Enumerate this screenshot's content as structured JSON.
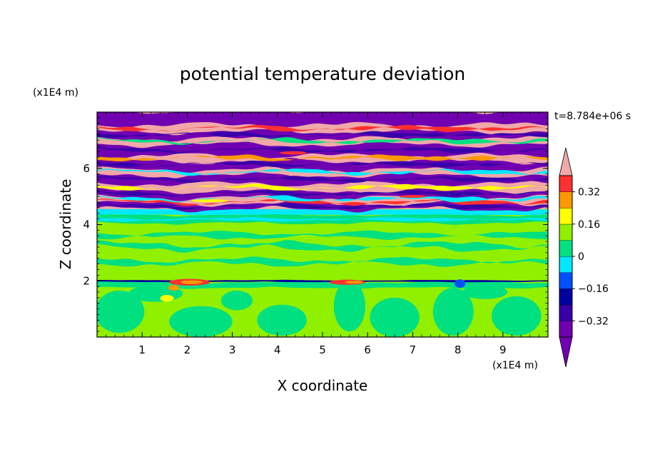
{
  "chart_data": {
    "type": "heatmap",
    "title": "potential temperature deviation",
    "xlabel": "X coordinate",
    "ylabel": "Z coordinate",
    "x_unit": "(x1E4 m)",
    "y_unit": "(x1E4 m)",
    "time_label": "t=8.784e+06 s",
    "xlim": [
      0,
      10
    ],
    "ylim": [
      0,
      8
    ],
    "xticks": [
      1,
      2,
      3,
      4,
      5,
      6,
      7,
      8,
      9
    ],
    "yticks": [
      2,
      4,
      6
    ],
    "colorbar": {
      "levels": [
        -0.4,
        -0.32,
        -0.24,
        -0.16,
        -0.08,
        0,
        0.08,
        0.16,
        0.24,
        0.32,
        0.4
      ],
      "tick_values": [
        0.32,
        0.16,
        0,
        -0.16,
        -0.32
      ],
      "tick_labels": [
        "0.32",
        "0.16",
        "0",
        "−0.16",
        "−0.32"
      ],
      "colors": [
        "#7000b0",
        "#3800a8",
        "#0000a0",
        "#0050ff",
        "#00e8ff",
        "#00e080",
        "#90f000",
        "#ffff00",
        "#ff9800",
        "#ff3030",
        "#f0a8a8"
      ],
      "under_color": "#7000b0",
      "over_color": "#f0a8a8"
    },
    "bands": [
      {
        "z_range": [
          0,
          1.9
        ],
        "description": "alternating green (0 to 0.08) and light green (0.08 to 0.16) cells"
      },
      {
        "z_range": [
          1.9,
          2.05
        ],
        "description": "thin layer with blue/red extremes near x=2 and x=5.5"
      },
      {
        "z_range": [
          2.05,
          4.4
        ],
        "description": "mostly light green with green streaks"
      },
      {
        "z_range": [
          4.4,
          4.6
        ],
        "description": "cyan layer"
      },
      {
        "z_range": [
          4.6,
          8
        ],
        "description": "alternating purple (below -0.32) and pink (above 0.32) layers"
      }
    ]
  }
}
